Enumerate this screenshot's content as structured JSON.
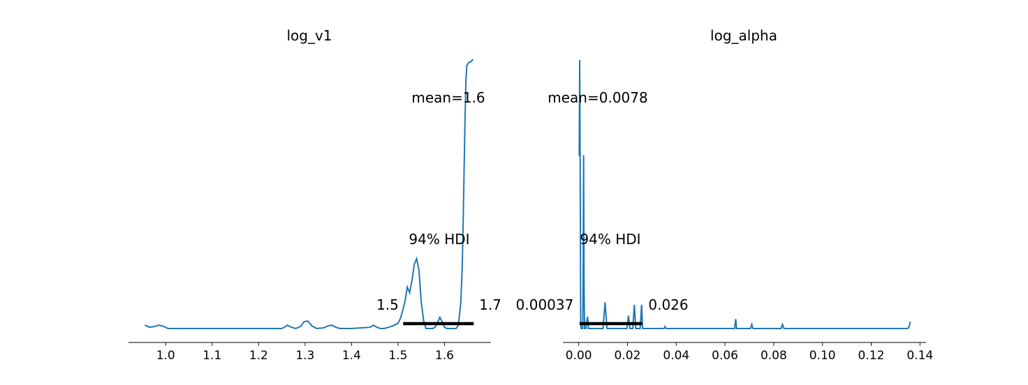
{
  "chart_data": [
    {
      "type": "line",
      "title": "log_v1",
      "xlabel": "",
      "ylabel": "",
      "xlim": [
        0.92,
        1.7
      ],
      "xticks": [
        1.0,
        1.1,
        1.2,
        1.3,
        1.4,
        1.5,
        1.6
      ],
      "tick_labels": [
        "1.0",
        "1.1",
        "1.2",
        "1.3",
        "1.4",
        "1.5",
        "1.6"
      ],
      "series": [
        {
          "color": "#1f77b4",
          "x": [
            0.955,
            0.965,
            0.975,
            0.985,
            0.995,
            1.005,
            1.05,
            1.1,
            1.15,
            1.2,
            1.25,
            1.255,
            1.262,
            1.27,
            1.28,
            1.29,
            1.298,
            1.306,
            1.315,
            1.325,
            1.34,
            1.35,
            1.358,
            1.366,
            1.375,
            1.4,
            1.44,
            1.447,
            1.455,
            1.462,
            1.47,
            1.48,
            1.49,
            1.5,
            1.505,
            1.51,
            1.515,
            1.52,
            1.525,
            1.53,
            1.535,
            1.54,
            1.545,
            1.55,
            1.555,
            1.56,
            1.565,
            1.57,
            1.575,
            1.58,
            1.585,
            1.59,
            1.595,
            1.6,
            1.605,
            1.61,
            1.615,
            1.62,
            1.625,
            1.63,
            1.635,
            1.638,
            1.64,
            1.642,
            1.644,
            1.646,
            1.648,
            1.65,
            1.653,
            1.656,
            1.66,
            1.662
          ],
          "y": [
            0.0124,
            0.0051,
            0.0071,
            0.0126,
            0.0082,
            0.0,
            0.0,
            0.0,
            0.0,
            0.0,
            0.0,
            0.0047,
            0.0124,
            0.0051,
            0.0,
            0.0073,
            0.0256,
            0.0277,
            0.0093,
            0.0,
            0.0025,
            0.0102,
            0.0121,
            0.0047,
            0.0,
            0.0,
            0.0047,
            0.0124,
            0.0047,
            0.0,
            0.0,
            0.0047,
            0.0106,
            0.0199,
            0.0366,
            0.0662,
            0.1001,
            0.1545,
            0.1333,
            0.1784,
            0.2389,
            0.2602,
            0.2181,
            0.099,
            0.0298,
            0.0,
            0.0,
            0.0,
            0.0,
            0.0051,
            0.0213,
            0.0418,
            0.0256,
            0.0051,
            0.0,
            0.0,
            0.0,
            0.0,
            0.0,
            0.0124,
            0.0954,
            0.218,
            0.3781,
            0.5727,
            0.7568,
            0.918,
            0.979,
            0.9842,
            0.9919,
            0.9919,
            1.0,
            1.0
          ]
        }
      ],
      "annotations": {
        "mean": "mean=1.6",
        "hdi": "94% HDI",
        "hdi_low_label": "1.5",
        "hdi_high_label": "1.7",
        "hdi_low": 1.511,
        "hdi_high": 1.663
      },
      "grid": false
    },
    {
      "type": "line",
      "title": "log_alpha",
      "xlabel": "",
      "ylabel": "",
      "xlim": [
        -0.0065,
        0.1425
      ],
      "xticks": [
        0.0,
        0.02,
        0.04,
        0.06,
        0.08,
        0.1,
        0.12,
        0.14
      ],
      "tick_labels": [
        "0.00",
        "0.02",
        "0.04",
        "0.06",
        "0.08",
        "0.10",
        "0.12",
        "0.14"
      ],
      "series": [
        {
          "color": "#1f77b4",
          "x": [
            0.0002,
            0.0004,
            0.0006,
            0.0008,
            0.001,
            0.0012,
            0.0014,
            0.0016,
            0.0018,
            0.002,
            0.0022,
            0.0024,
            0.0026,
            0.0028,
            0.003,
            0.0033,
            0.0036,
            0.0038,
            0.004,
            0.0042,
            0.0046,
            0.006,
            0.008,
            0.01,
            0.0104,
            0.0108,
            0.0112,
            0.0116,
            0.012,
            0.015,
            0.019,
            0.0198,
            0.0204,
            0.021,
            0.0216,
            0.0222,
            0.0228,
            0.0234,
            0.024,
            0.0246,
            0.0252,
            0.0258,
            0.0262,
            0.0266,
            0.0272,
            0.03,
            0.035,
            0.0354,
            0.0358,
            0.0362,
            0.04,
            0.05,
            0.06,
            0.064,
            0.0644,
            0.0648,
            0.0652,
            0.0656,
            0.068,
            0.0705,
            0.071,
            0.0715,
            0.08,
            0.083,
            0.0836,
            0.0842,
            0.09,
            0.1,
            0.11,
            0.12,
            0.13,
            0.135,
            0.1356,
            0.136
          ],
          "y": [
            0.6424,
            1.0,
            0.5968,
            0.0253,
            0.0,
            0.0,
            0.0,
            0.0,
            0.157,
            0.6456,
            0.1443,
            0.0,
            0.0,
            0.0,
            0.0,
            0.0253,
            0.0443,
            0.0253,
            0.0,
            0.0,
            0.0,
            0.0,
            0.0,
            0.0,
            0.0506,
            0.0975,
            0.0506,
            0.0,
            0.0,
            0.0,
            0.0,
            0.0,
            0.0481,
            0.0,
            0.0,
            0.0,
            0.0886,
            0.0,
            0.0,
            0.0,
            0.0,
            0.0886,
            0.0,
            0.0,
            0.0,
            0.0,
            0.0,
            0.0076,
            0.0,
            0.0,
            0.0,
            0.0,
            0.0,
            0.0,
            0.0354,
            0.0,
            0.0,
            0.0,
            0.0,
            0.0,
            0.0152,
            0.0,
            0.0,
            0.0,
            0.0152,
            0.0,
            0.0,
            0.0,
            0.0,
            0.0,
            0.0,
            0.0,
            0.0076,
            0.0253
          ]
        }
      ],
      "annotations": {
        "mean": "mean=0.0078",
        "hdi": "94% HDI",
        "hdi_low_label": "0.00037",
        "hdi_high_label": "0.026",
        "hdi_low": 0.00037,
        "hdi_high": 0.026
      },
      "grid": false
    }
  ]
}
